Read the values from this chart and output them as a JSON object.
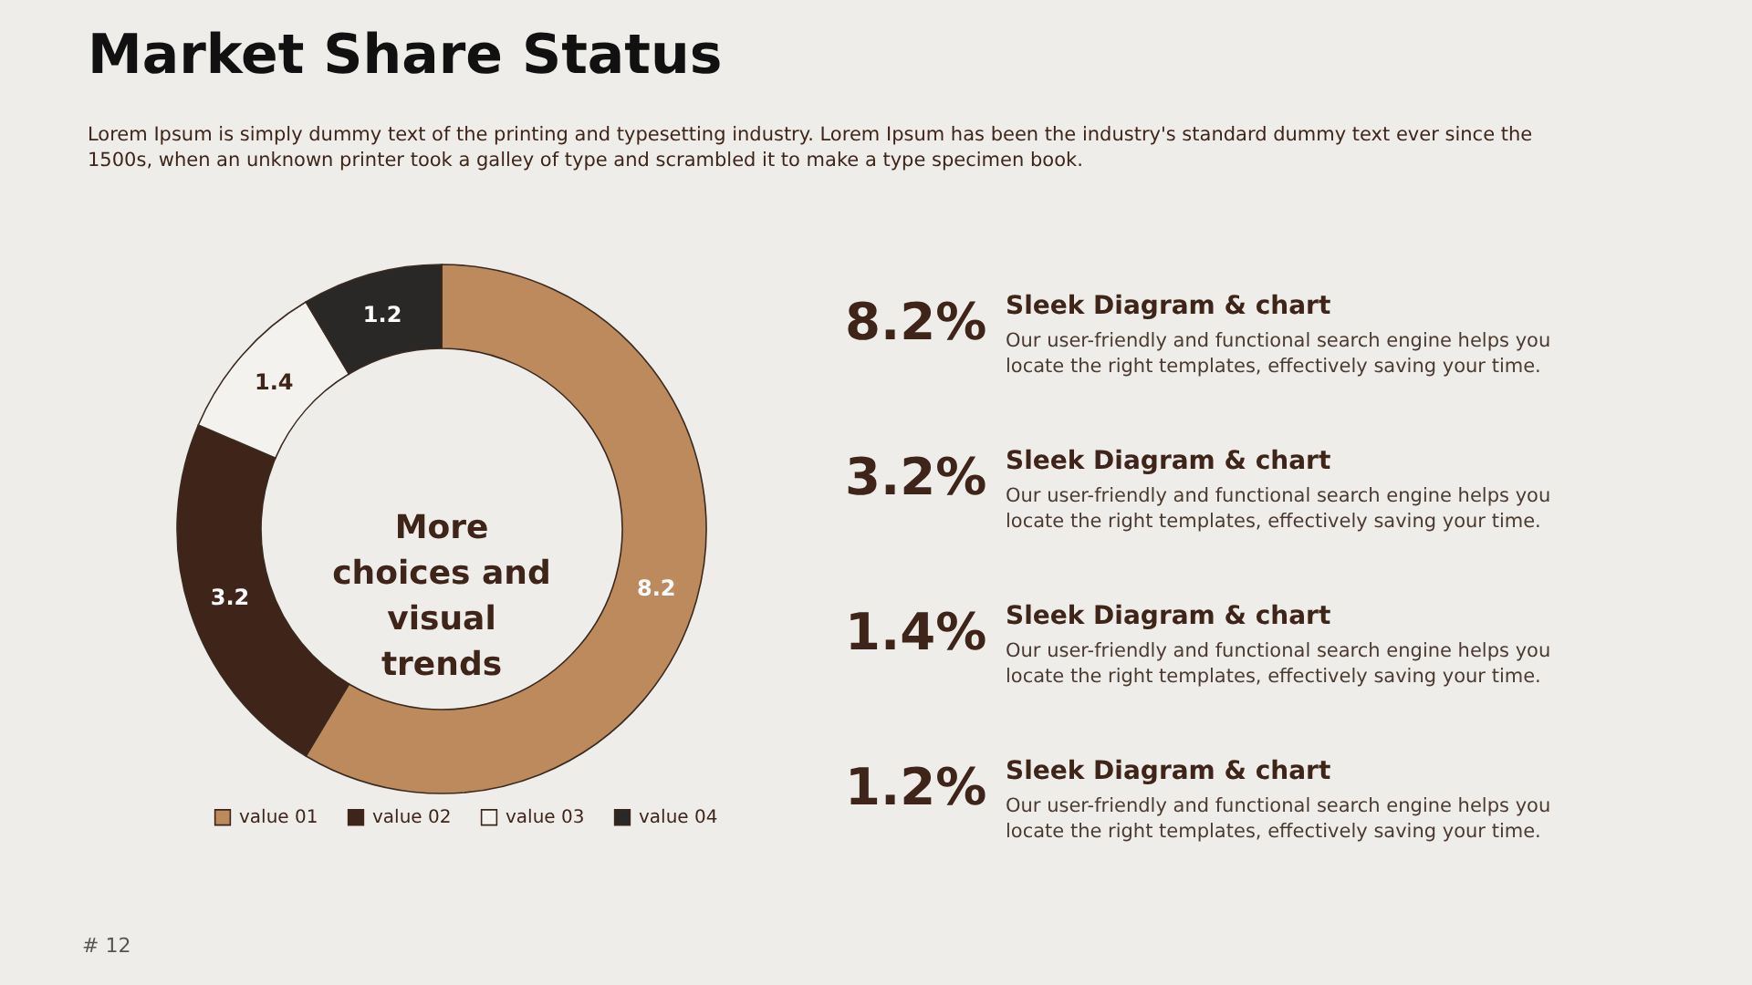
{
  "chart_data": {
    "type": "donut",
    "title": "Market Share Status",
    "subtitle": "Lorem Ipsum is simply dummy text of the printing and typesetting industry. Lorem Ipsum has been the industry's standard dummy text ever since the 1500s, when an unknown printer took a galley of type and scrambled it to make a type specimen book.",
    "categories": [
      "value 01",
      "value 02",
      "value 03",
      "value 04"
    ],
    "values": [
      8.2,
      3.2,
      1.4,
      1.2
    ],
    "colors": [
      "#bc8a5c",
      "#3e2419",
      "#f4f2ee",
      "#2a2827"
    ],
    "data_labels": true,
    "legend": "bottom",
    "annotations": [
      "More choices and visual trends",
      "8.2%",
      "Sleek Diagram & chart",
      "Our user-friendly and functional search engine helps you locate the right templates, effectively saving your time.",
      "3.2%",
      "Sleek Diagram & chart",
      "Our user-friendly and functional search engine helps you locate the right templates, effectively saving your time.",
      "1.4%",
      "Sleek Diagram & chart",
      "Our user-friendly and functional search engine helps you locate the right templates, effectively saving your time.",
      "1.2%",
      "Sleek Diagram & chart",
      "Our user-friendly and functional search engine helps you locate the right templates, effectively saving your time.",
      "# 12"
    ]
  }
}
